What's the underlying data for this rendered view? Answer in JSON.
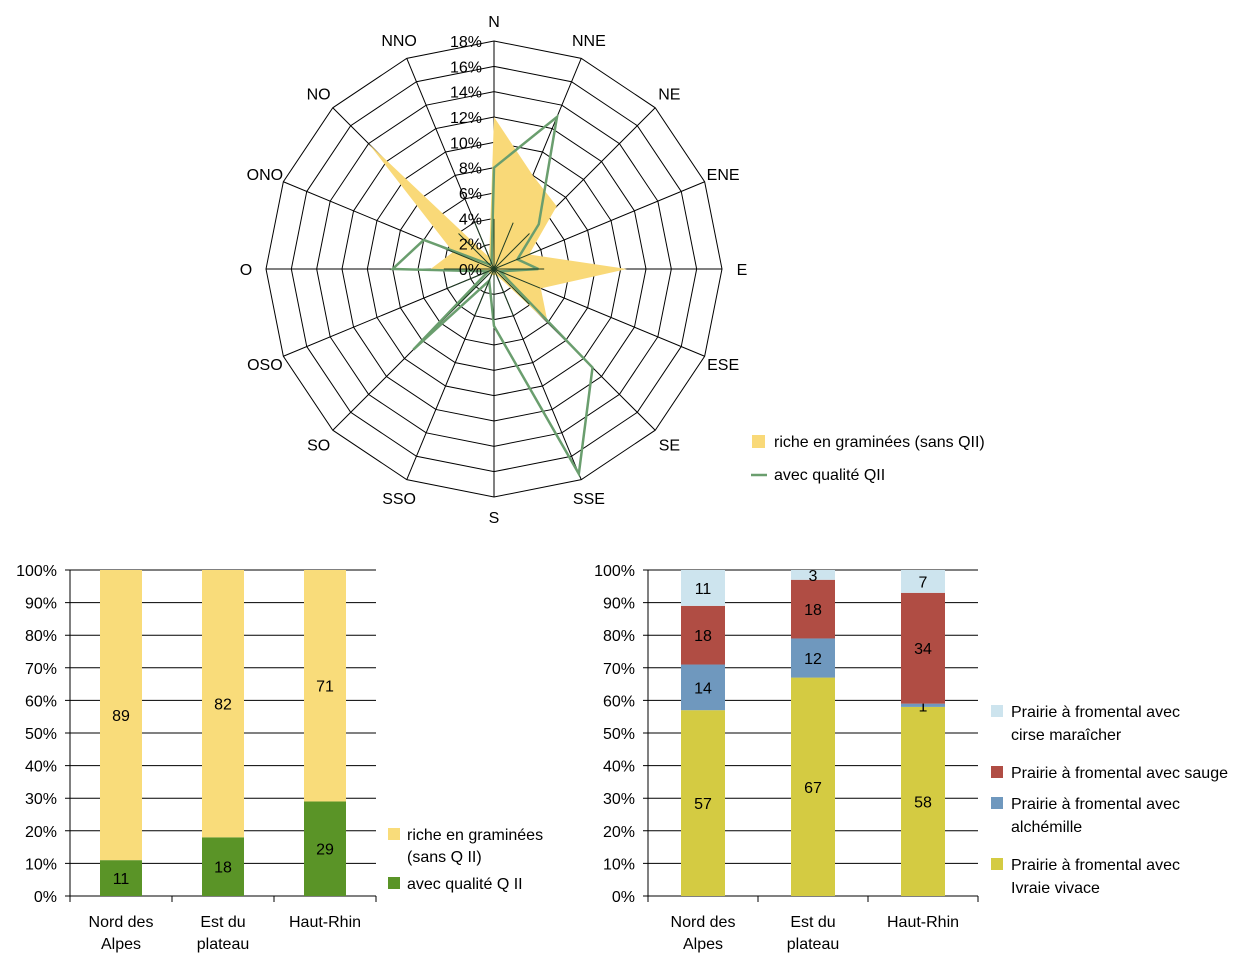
{
  "chart_data": [
    {
      "type": "radar",
      "categories": [
        "N",
        "NNE",
        "NE",
        "ENE",
        "E",
        "ESE",
        "SE",
        "SSE",
        "S",
        "SSO",
        "SO",
        "OSO",
        "O",
        "ONO",
        "NO",
        "NNO"
      ],
      "radial_ticks": [
        "0%",
        "2%",
        "4%",
        "6%",
        "8%",
        "10%",
        "12%",
        "14%",
        "16%",
        "18%"
      ],
      "rmax": 18,
      "series": [
        {
          "name": "riche en graminées (sans QII)",
          "style": "area",
          "color": "#f9d978",
          "values": [
            12.0,
            8.0,
            7.0,
            3.0,
            10.5,
            4.0,
            6.0,
            0.5,
            0.5,
            0.5,
            0.5,
            0.5,
            5.0,
            3.5,
            14.0,
            1.0
          ]
        },
        {
          "name": "avec qualité QII",
          "style": "line",
          "color": "#6a9e6e",
          "values": [
            8.0,
            13.0,
            5.0,
            2.0,
            3.5,
            0.5,
            11.0,
            17.5,
            4.5,
            1.0,
            9.0,
            0.5,
            8.0,
            6.0,
            0.5,
            0.5
          ]
        }
      ],
      "legend": "bottom-right"
    },
    {
      "type": "stacked-bar",
      "categories": [
        "Nord des Alpes",
        "Est du plateau",
        "Haut-Rhin"
      ],
      "y_ticks": [
        "0%",
        "10%",
        "20%",
        "30%",
        "40%",
        "50%",
        "60%",
        "70%",
        "80%",
        "90%",
        "100%"
      ],
      "ylim": [
        0,
        100
      ],
      "series": [
        {
          "name": "avec qualité Q II",
          "color": "#5a9427",
          "values": [
            11,
            18,
            29
          ]
        },
        {
          "name": "riche en graminées (sans Q II)",
          "color": "#f9dc7a",
          "values": [
            89,
            82,
            71
          ]
        }
      ],
      "legend": "right"
    },
    {
      "type": "stacked-bar",
      "categories": [
        "Nord des Alpes",
        "Est du plateau",
        "Haut-Rhin"
      ],
      "y_ticks": [
        "0%",
        "10%",
        "20%",
        "30%",
        "40%",
        "50%",
        "60%",
        "70%",
        "80%",
        "90%",
        "100%"
      ],
      "ylim": [
        0,
        100
      ],
      "series": [
        {
          "name": "Prairie à fromental avec ivraie vivace",
          "color": "#d4cb42",
          "values": [
            57,
            67,
            58
          ]
        },
        {
          "name": "Prairie à fromental avec alchémille",
          "color": "#6f98be",
          "values": [
            14,
            12,
            1
          ]
        },
        {
          "name": "Prairie à fromental avec sauge",
          "color": "#b04d44",
          "values": [
            18,
            18,
            34
          ]
        },
        {
          "name": "Prairie à fromental avec cirse maraîcher",
          "color": "#cde4ee",
          "values": [
            11,
            3,
            7
          ]
        }
      ],
      "legend": "right"
    }
  ],
  "legends": {
    "radar": [
      {
        "text": "riche en graminées (sans QII)"
      },
      {
        "text": "avec qualité QII"
      }
    ],
    "bar1": [
      {
        "line1": "riche en graminées",
        "line2": "(sans Q II)"
      },
      {
        "line1": "avec qualité Q II",
        "line2": ""
      }
    ],
    "bar2": [
      {
        "line1": "Prairie à fromental avec",
        "line2": "cirse maraîcher"
      },
      {
        "line1": "Prairie à fromental avec sauge",
        "line2": ""
      },
      {
        "line1": "Prairie à fromental avec",
        "line2": "alchémille"
      },
      {
        "line1": "Prairie à fromental avec",
        "line2": "Ivraie vivace"
      }
    ]
  },
  "category_labels": [
    {
      "line1": "Nord des",
      "line2": "Alpes"
    },
    {
      "line1": "Est du",
      "line2": "plateau"
    },
    {
      "line1": "Haut-Rhin",
      "line2": ""
    }
  ]
}
